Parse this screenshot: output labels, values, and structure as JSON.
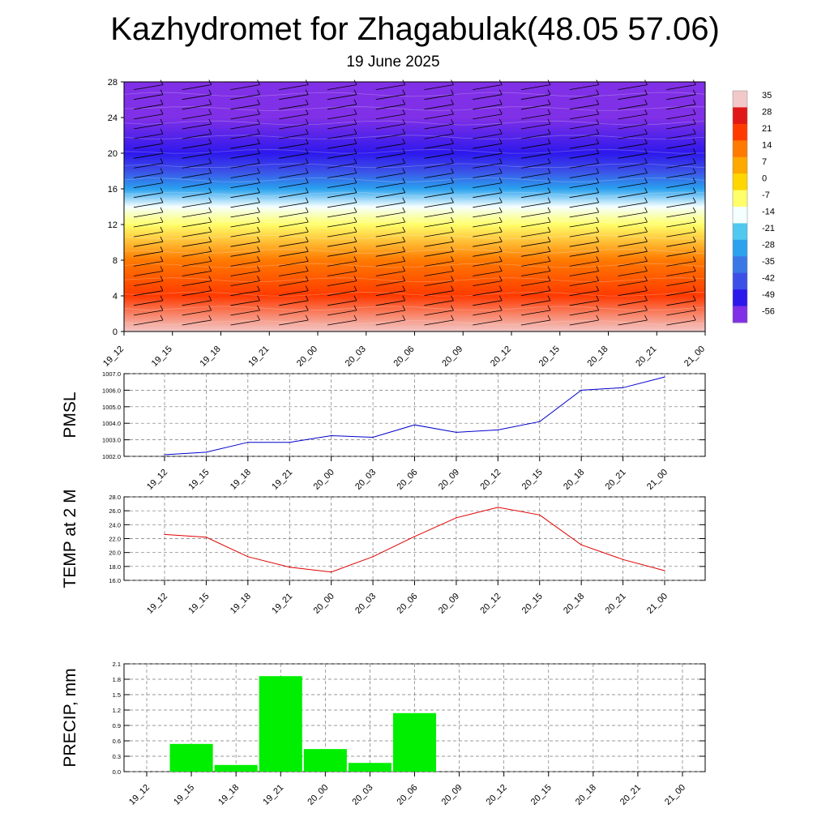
{
  "header": {
    "title": "Kazhydromet for Zhagabulak(48.05 57.06)",
    "subtitle": "19 June 2025"
  },
  "chart_data": [
    {
      "type": "heatmap",
      "title": "",
      "xlabel": "",
      "ylabel": "",
      "x": [
        "19_12",
        "19_15",
        "19_18",
        "19_21",
        "20_00",
        "20_03",
        "20_06",
        "20_09",
        "20_12",
        "20_15",
        "20_18",
        "20_21",
        "21_00"
      ],
      "yticks": [
        0,
        4,
        8,
        12,
        16,
        20,
        24,
        28
      ],
      "ylim": [
        0,
        28
      ],
      "colorbar": {
        "labels": [
          "35",
          "28",
          "21",
          "14",
          "7",
          "0",
          "-7",
          "-14",
          "-21",
          "-28",
          "-35",
          "-42",
          "-49",
          "-56"
        ],
        "colors": [
          "#f2c8c8",
          "#e01818",
          "#ff3a00",
          "#ff7a00",
          "#ffa800",
          "#ffd600",
          "#ffff6a",
          "#f4ffff",
          "#50c8f0",
          "#2aa2ee",
          "#3a78e6",
          "#3c50e8",
          "#2d18ec",
          "#8030e6"
        ]
      },
      "temperature_by_level": [
        {
          "level": 0,
          "value": 30
        },
        {
          "level": 4,
          "value": 20
        },
        {
          "level": 8,
          "value": 8
        },
        {
          "level": 12,
          "value": -8
        },
        {
          "level": 14,
          "value": -20
        },
        {
          "level": 16,
          "value": -35
        },
        {
          "level": 18,
          "value": -45
        },
        {
          "level": 20,
          "value": -50
        },
        {
          "level": 24,
          "value": -57
        },
        {
          "level": 28,
          "value": -60
        }
      ]
    },
    {
      "type": "line",
      "ylabel": "PMSL",
      "x": [
        "19_12",
        "19_15",
        "19_18",
        "19_21",
        "20_00",
        "20_03",
        "20_06",
        "20_09",
        "20_12",
        "20_15",
        "20_18",
        "20_21",
        "21_00"
      ],
      "series": [
        {
          "values": [
            1002.1,
            1002.25,
            1002.85,
            1002.85,
            1003.25,
            1003.15,
            1003.9,
            1003.45,
            1003.6,
            1004.1,
            1006.0,
            1006.15,
            1006.8
          ],
          "color": "#0000cc"
        }
      ],
      "ylim": [
        1002.0,
        1007.0
      ],
      "yticks": [
        "1002.0",
        "1003.0",
        "1004.0",
        "1005.0",
        "1006.0",
        "1007.0"
      ],
      "grid": true
    },
    {
      "type": "line",
      "ylabel": "TEMP at 2 M",
      "x": [
        "19_12",
        "19_15",
        "19_18",
        "19_21",
        "20_00",
        "20_03",
        "20_06",
        "20_09",
        "20_12",
        "20_15",
        "20_18",
        "20_21",
        "21_00"
      ],
      "series": [
        {
          "values": [
            22.6,
            22.2,
            19.4,
            17.9,
            17.2,
            19.4,
            22.3,
            25.0,
            26.5,
            25.4,
            21.1,
            19.0,
            17.4
          ],
          "color": "#e00000"
        }
      ],
      "ylim": [
        16.0,
        28.0
      ],
      "yticks": [
        "16.0",
        "18.0",
        "20.0",
        "22.0",
        "24.0",
        "26.0",
        "28.0"
      ],
      "grid": true
    },
    {
      "type": "bar",
      "ylabel": "PRECIP, mm",
      "categories": [
        "19_12",
        "19_15",
        "19_18",
        "19_21",
        "20_00",
        "20_03",
        "20_06",
        "20_09",
        "20_12",
        "20_15",
        "20_18",
        "20_21",
        "21_00"
      ],
      "values": [
        0,
        0.54,
        0.13,
        1.86,
        0.44,
        0.17,
        1.14,
        0,
        0,
        0,
        0,
        0,
        0
      ],
      "color": "#00ee00",
      "ylim": [
        0,
        2.1
      ],
      "yticks": [
        "0.0",
        "0.3",
        "0.6",
        "0.9",
        "1.2",
        "1.5",
        "1.8",
        "2.1"
      ],
      "grid": true
    }
  ]
}
